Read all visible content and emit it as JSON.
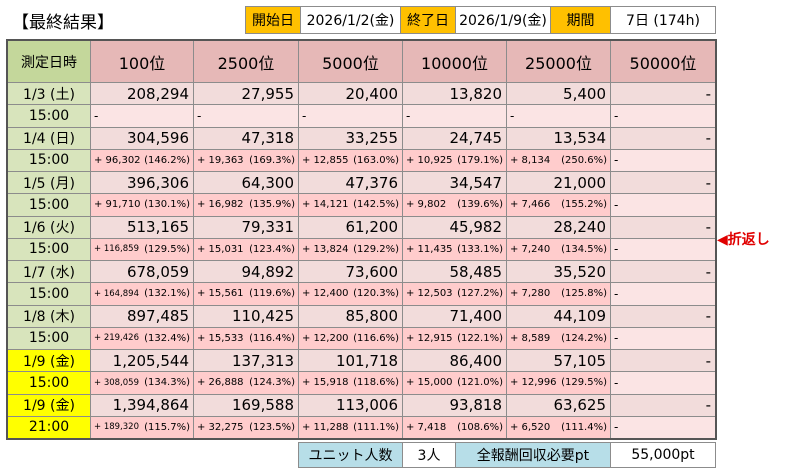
{
  "header": {
    "title": "【最終結果】",
    "start_label": "開始日",
    "start_date": "2026/1/2(金)",
    "end_label": "終了日",
    "end_date": "2026/1/9(金)",
    "period_label": "期間",
    "period": "7日 (174h)"
  },
  "table": {
    "columns": [
      "測定日時",
      "100位",
      "2500位",
      "5000位",
      "10000位",
      "25000位",
      "50000位"
    ],
    "rows": [
      {
        "date": "1/3 (土)",
        "time": "15:00",
        "color": "#d8e4bc",
        "values": [
          "208,294",
          "27,955",
          "20,400",
          "13,820",
          "5,400",
          "-"
        ],
        "diffs": [
          [
            "-"
          ],
          [
            "-"
          ],
          [
            "-"
          ],
          [
            "-"
          ],
          [
            "-"
          ],
          [
            "-"
          ]
        ]
      },
      {
        "date": "1/4 (日)",
        "time": "15:00",
        "color": "#d8e4bc",
        "values": [
          "304,596",
          "47,318",
          "33,255",
          "24,745",
          "13,534",
          "-"
        ],
        "diffs": [
          [
            "+ 96,302",
            "(146.2%)"
          ],
          [
            "+ 19,363",
            "(169.3%)"
          ],
          [
            "+ 12,855",
            "(163.0%)"
          ],
          [
            "+ 10,925",
            "(179.1%)"
          ],
          [
            "+ 8,134",
            "(250.6%)"
          ],
          [
            "-"
          ]
        ]
      },
      {
        "date": "1/5 (月)",
        "time": "15:00",
        "color": "#d8e4bc",
        "values": [
          "396,306",
          "64,300",
          "47,376",
          "34,547",
          "21,000",
          "-"
        ],
        "diffs": [
          [
            "+ 91,710",
            "(130.1%)"
          ],
          [
            "+ 16,982",
            "(135.9%)"
          ],
          [
            "+ 14,121",
            "(142.5%)"
          ],
          [
            "+ 9,802",
            "(139.6%)"
          ],
          [
            "+ 7,466",
            "(155.2%)"
          ],
          [
            "-"
          ]
        ]
      },
      {
        "date": "1/6 (火)",
        "time": "15:00",
        "color": "#d8e4bc",
        "values": [
          "513,165",
          "79,331",
          "61,200",
          "45,982",
          "28,240",
          "-"
        ],
        "diffs": [
          [
            "+ 116,859",
            "(129.5%)"
          ],
          [
            "+ 15,031",
            "(123.4%)"
          ],
          [
            "+ 13,824",
            "(129.2%)"
          ],
          [
            "+ 11,435",
            "(133.1%)"
          ],
          [
            "+ 7,240",
            "(134.5%)"
          ],
          [
            "-"
          ]
        ],
        "note": "◀折返し"
      },
      {
        "date": "1/7 (水)",
        "time": "15:00",
        "color": "#d8e4bc",
        "values": [
          "678,059",
          "94,892",
          "73,600",
          "58,485",
          "35,520",
          "-"
        ],
        "diffs": [
          [
            "+ 164,894",
            "(132.1%)"
          ],
          [
            "+ 15,561",
            "(119.6%)"
          ],
          [
            "+ 12,400",
            "(120.3%)"
          ],
          [
            "+ 12,503",
            "(127.2%)"
          ],
          [
            "+ 7,280",
            "(125.8%)"
          ],
          [
            "-"
          ]
        ]
      },
      {
        "date": "1/8 (木)",
        "time": "15:00",
        "color": "#d8e4bc",
        "values": [
          "897,485",
          "110,425",
          "85,800",
          "71,400",
          "44,109",
          "-"
        ],
        "diffs": [
          [
            "+ 219,426",
            "(132.4%)"
          ],
          [
            "+ 15,533",
            "(116.4%)"
          ],
          [
            "+ 12,200",
            "(116.6%)"
          ],
          [
            "+ 12,915",
            "(122.1%)"
          ],
          [
            "+ 8,589",
            "(124.2%)"
          ],
          [
            "-"
          ]
        ]
      },
      {
        "date": "1/9 (金)",
        "time": "15:00",
        "color": "#ffff00",
        "values": [
          "1,205,544",
          "137,313",
          "101,718",
          "86,400",
          "57,105",
          "-"
        ],
        "diffs": [
          [
            "+ 308,059",
            "(134.3%)"
          ],
          [
            "+ 26,888",
            "(124.3%)"
          ],
          [
            "+ 15,918",
            "(118.6%)"
          ],
          [
            "+ 15,000",
            "(121.0%)"
          ],
          [
            "+ 12,996",
            "(129.5%)"
          ],
          [
            "-"
          ]
        ]
      },
      {
        "date": "1/9 (金)",
        "time": "21:00",
        "color": "#ffff00",
        "values": [
          "1,394,864",
          "169,588",
          "113,006",
          "93,818",
          "63,625",
          "-"
        ],
        "diffs": [
          [
            "+ 189,320",
            "(115.7%)"
          ],
          [
            "+ 32,275",
            "(123.5%)"
          ],
          [
            "+ 11,288",
            "(111.1%)"
          ],
          [
            "+ 7,418",
            "(108.6%)"
          ],
          [
            "+ 6,520",
            "(111.4%)"
          ],
          [
            "-"
          ]
        ]
      }
    ]
  },
  "footer": {
    "units_label": "ユニット人数",
    "units": "3人",
    "required_label": "全報酬回収必要pt",
    "required": "55,000pt"
  }
}
